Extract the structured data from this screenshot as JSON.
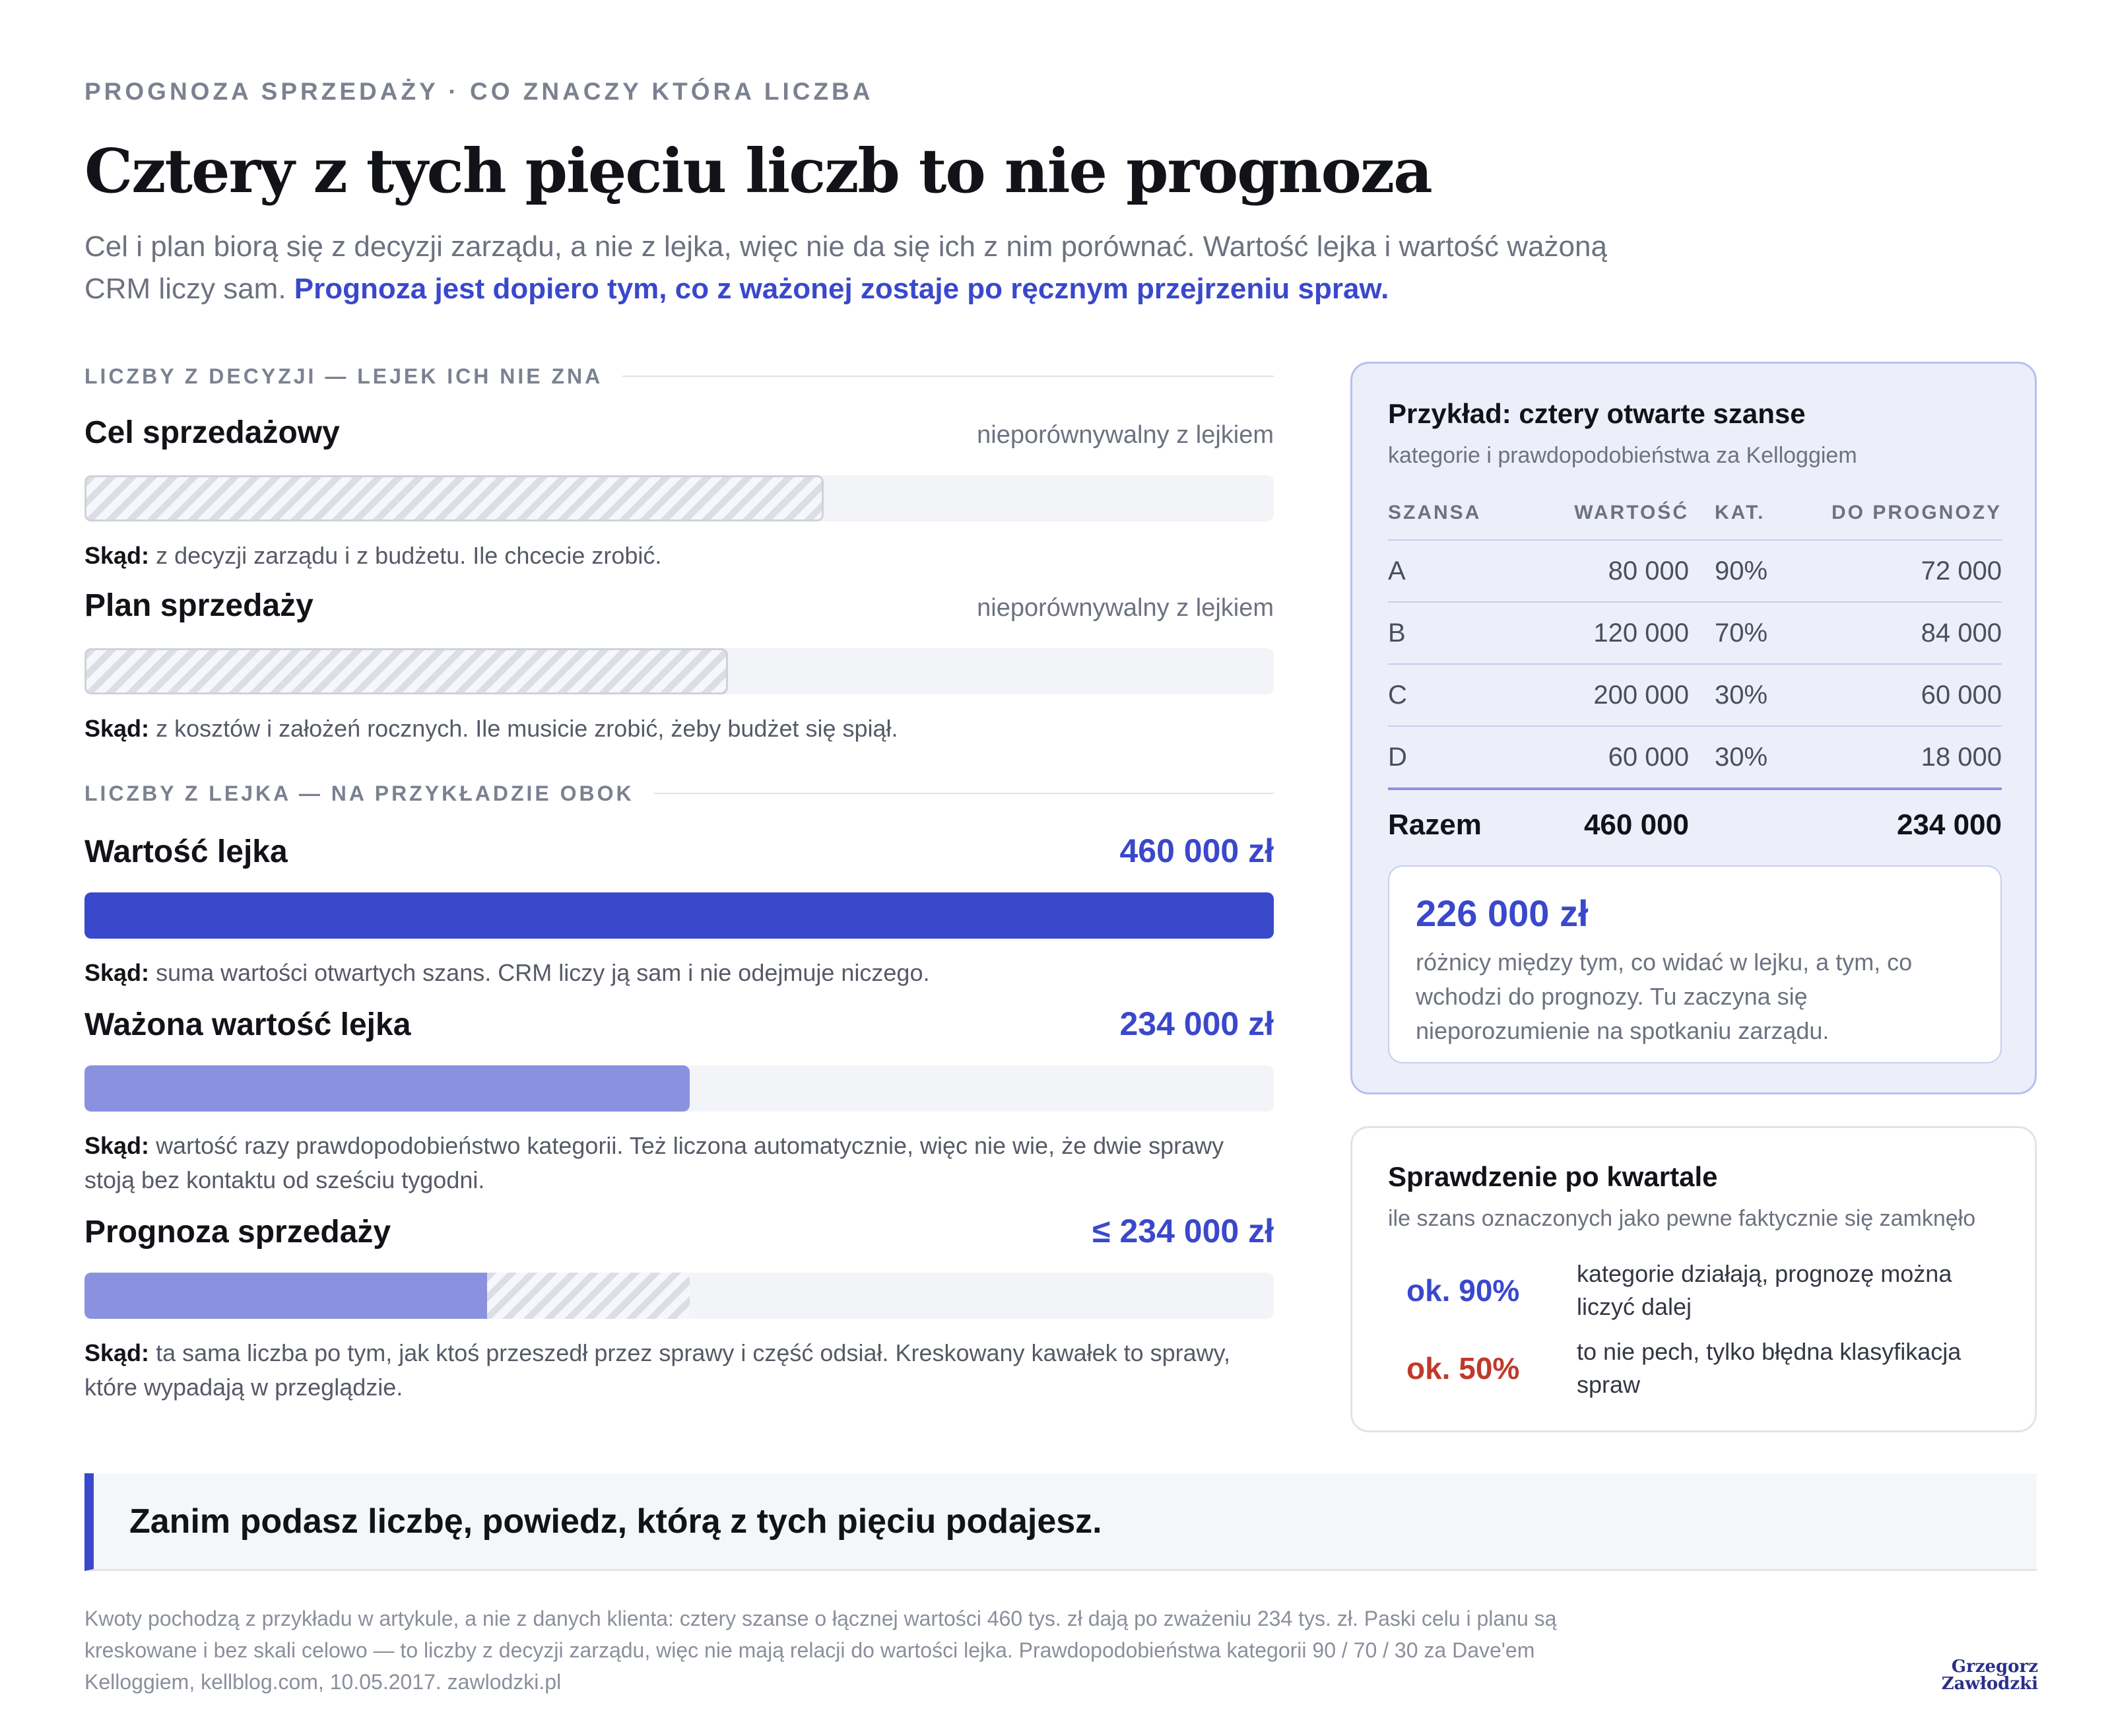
{
  "header": {
    "eyebrow": "PROGNOZA SPRZEDAŻY · CO ZNACZY KTÓRA LICZBA",
    "title": "Cztery z tych pięciu liczb to nie prognoza",
    "subtitle_plain": "Cel i plan biorą się z decyzji zarządu, a nie z lejka, więc nie da się ich z nim porównać. Wartość lejka i wartość ważoną CRM liczy sam. ",
    "subtitle_accent": "Prognoza jest dopiero tym, co z ważonej zostaje po ręcznym przejrzeniu spraw."
  },
  "sections": {
    "decisions": "LICZBY Z DECYZJI — LEJEK ICH NIE ZNA",
    "funnel": "LICZBY Z LEJKA — NA PRZYKŁADZIE OBOK"
  },
  "source_prefix": "Skąd:",
  "metrics": [
    {
      "name": "Cel sprzedażowy",
      "note": "nieporównywalny z lejkiem",
      "source": "z decyzji zarządu i z budżetu. Ile chcecie zrobić."
    },
    {
      "name": "Plan sprzedaży",
      "note": "nieporównywalny z lejkiem",
      "source": "z kosztów i założeń rocznych. Ile musicie zrobić, żeby budżet się spiął."
    },
    {
      "name": "Wartość lejka",
      "value": "460 000 zł",
      "amount": 460000,
      "source": "suma wartości otwartych szans. CRM liczy ją sam i nie odejmuje niczego."
    },
    {
      "name": "Ważona wartość lejka",
      "value": "234 000 zł",
      "amount": 234000,
      "source": "wartość razy prawdopodobieństwo kategorii. Też liczona automatycznie, więc nie wie, że dwie sprawy stoją bez kontaktu od sześciu tygodni."
    },
    {
      "name": "Prognoza sprzedaży",
      "value": "≤ 234 000 zł",
      "amount": 234000,
      "source": "ta sama liczba po tym, jak ktoś przeszedł przez sprawy i część odsiał. Kreskowany kawałek to sprawy, które wypadają w przeglądzie."
    }
  ],
  "example": {
    "title": "Przykład: cztery otwarte szanse",
    "subtitle": "kategorie i prawdopodobieństwa za Kelloggiem",
    "columns": [
      "SZANSA",
      "WARTOŚĆ",
      "KAT.",
      "DO PROGNOZY"
    ],
    "rows": [
      {
        "name": "A",
        "value": "80 000",
        "cat": "90%",
        "forecast": "72 000"
      },
      {
        "name": "B",
        "value": "120 000",
        "cat": "70%",
        "forecast": "84 000"
      },
      {
        "name": "C",
        "value": "200 000",
        "cat": "30%",
        "forecast": "60 000"
      },
      {
        "name": "D",
        "value": "60 000",
        "cat": "30%",
        "forecast": "18 000"
      }
    ],
    "total": {
      "label": "Razem",
      "value": "460 000",
      "forecast": "234 000"
    },
    "gap_value": "226 000 zł",
    "gap_text": "różnicy między tym, co widać w lejku, a tym, co wchodzi do prognozy. Tu zaczyna się nieporozumienie na spotkaniu zarządu."
  },
  "check": {
    "title": "Sprawdzenie po kwartale",
    "subtitle": "ile szans oznaczonych jako pewne faktycznie się zamknęło",
    "items": [
      {
        "value": "ok. 90%",
        "text": "kategorie działają, prognozę można liczyć dalej",
        "color": "#3a48cc"
      },
      {
        "value": "ok. 50%",
        "text": "to nie pech, tylko błędna klasyfikacja spraw",
        "color": "#c0392b"
      }
    ]
  },
  "callout": "Zanim podasz liczbę, powiedz, którą z tych pięciu podajesz.",
  "footnote": "Kwoty pochodzą z przykładu w artykule, a nie z danych klienta: cztery szanse o łącznej wartości 460 tys. zł dają po zważeniu 234 tys. zł. Paski celu i planu są kreskowane i bez skali celowo — to liczby z decyzji zarządu, więc nie mają relacji do wartości lejka. Prawdopodobieństwa kategorii 90 / 70 / 30 za Dave'em Kelloggiem, kellblog.com, 10.05.2017. zawlodzki.pl",
  "brand": {
    "line1": "Grzegorz",
    "line2": "Zawłodzki"
  },
  "colors": {
    "accent": "#3a48cc",
    "accent_light": "#8a92e0",
    "warning": "#c0392b"
  }
}
